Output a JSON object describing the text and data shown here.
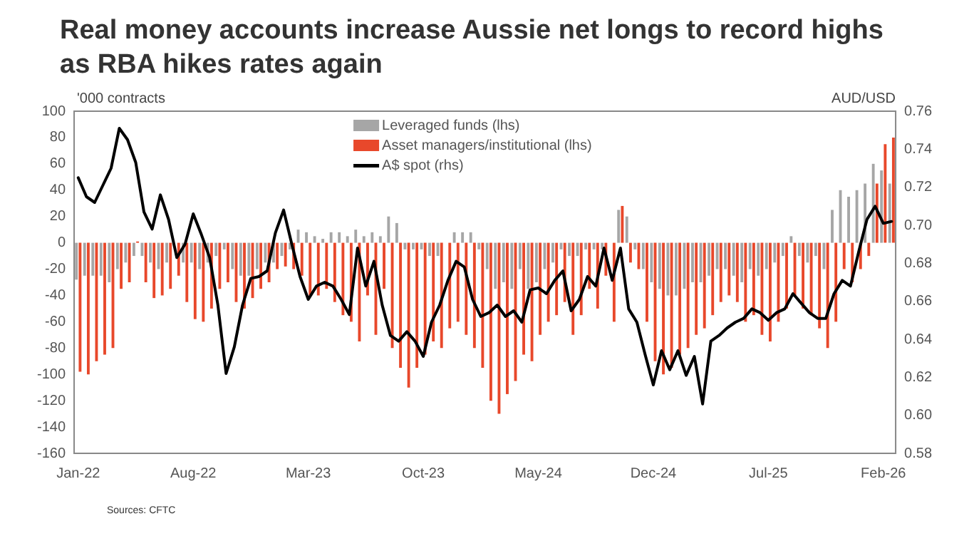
{
  "chart_data": {
    "type": "bar",
    "title": "Real money accounts increase Aussie net longs to record highs as RBA hikes rates again",
    "ylabel": "'000 contracts",
    "y2label": "AUD/USD",
    "annotations": [
      "Sources: CFTC"
    ],
    "categories": [
      "Jan-22",
      null,
      null,
      null,
      null,
      null,
      null,
      null,
      null,
      null,
      null,
      null,
      null,
      null,
      "Aug-22",
      null,
      null,
      null,
      null,
      null,
      null,
      null,
      null,
      null,
      null,
      null,
      null,
      null,
      "Mar-23",
      null,
      null,
      null,
      null,
      null,
      null,
      null,
      null,
      null,
      null,
      null,
      null,
      null,
      "Oct-23",
      null,
      null,
      null,
      null,
      null,
      null,
      null,
      null,
      null,
      null,
      null,
      null,
      null,
      "May-24",
      null,
      null,
      null,
      null,
      null,
      null,
      null,
      null,
      null,
      null,
      null,
      null,
      null,
      "Dec-24",
      null,
      null,
      null,
      null,
      null,
      null,
      null,
      null,
      null,
      null,
      null,
      null,
      null,
      "Jul-25",
      null,
      null,
      null,
      null,
      null,
      null,
      null,
      null,
      null,
      null,
      null,
      null,
      null,
      "Feb-26",
      null
    ],
    "series": [
      {
        "name": "Leveraged funds (lhs)",
        "color": "#a6a6a6",
        "values": [
          -28,
          -25,
          -25,
          -25,
          -30,
          -20,
          -15,
          -10,
          -10,
          -15,
          -20,
          -15,
          null,
          -15,
          -15,
          -20,
          -15,
          -10,
          -5,
          -20,
          -25,
          -25,
          -20,
          -15,
          -15,
          -10,
          -5,
          10,
          8,
          5,
          3,
          8,
          8,
          5,
          10,
          5,
          8,
          5,
          20,
          15,
          -5,
          -5,
          -5,
          -10,
          -10,
          0,
          8,
          8,
          8,
          -5,
          -20,
          -35,
          -30,
          -35,
          -20,
          -35,
          -30,
          -20,
          -15,
          -5,
          -10,
          -10,
          -5,
          -5,
          -5,
          0,
          25,
          20,
          -5,
          -20,
          -30,
          -35,
          -40,
          -40,
          -35,
          -30,
          -30,
          -25,
          -20,
          -20,
          -25,
          -30,
          -20,
          -25,
          -20,
          -15,
          -10,
          5,
          -10,
          -15,
          -10,
          -20,
          25,
          40,
          35,
          40,
          45,
          60,
          55,
          45
        ]
      },
      {
        "name": "Asset managers/institutional (lhs)",
        "color": "#e8482b",
        "values": [
          -98,
          -100,
          -90,
          -85,
          -80,
          -35,
          -30,
          1,
          -30,
          -42,
          -40,
          -35,
          -25,
          -45,
          -58,
          -60,
          -50,
          -35,
          -30,
          -45,
          -50,
          -42,
          -35,
          -30,
          -20,
          -18,
          -20,
          -25,
          -40,
          -40,
          -35,
          -45,
          -55,
          -60,
          -75,
          -40,
          -70,
          -35,
          -80,
          -95,
          -110,
          -95,
          -85,
          -75,
          -80,
          -65,
          -60,
          -70,
          -80,
          -95,
          -120,
          -130,
          -115,
          -105,
          -85,
          -90,
          -70,
          -60,
          -55,
          -45,
          -70,
          -55,
          -35,
          -50,
          -25,
          -60,
          28,
          -15,
          -20,
          -60,
          -90,
          -100,
          -95,
          -85,
          -80,
          -70,
          -65,
          -55,
          -45,
          -40,
          -45,
          -60,
          -55,
          -70,
          -75,
          -60,
          -50,
          -40,
          -50,
          -55,
          -65,
          -80,
          -60,
          -20,
          -30,
          -20,
          -10,
          45,
          75,
          80
        ]
      },
      {
        "name": "A$ spot (rhs)",
        "type": "line",
        "axis": "y2",
        "color": "#000000",
        "values": [
          0.725,
          0.715,
          0.712,
          0.721,
          0.73,
          0.751,
          0.745,
          0.733,
          0.707,
          0.698,
          0.716,
          0.703,
          0.683,
          0.69,
          0.706,
          0.695,
          0.683,
          0.658,
          0.622,
          0.636,
          0.658,
          0.672,
          0.673,
          0.676,
          0.696,
          0.708,
          0.69,
          0.673,
          0.661,
          0.668,
          0.67,
          0.668,
          0.661,
          0.653,
          0.688,
          0.668,
          0.681,
          0.658,
          0.642,
          0.639,
          0.644,
          0.639,
          0.631,
          0.649,
          0.658,
          0.671,
          0.681,
          0.678,
          0.661,
          0.652,
          0.654,
          0.658,
          0.652,
          0.655,
          0.649,
          0.666,
          0.667,
          0.664,
          0.671,
          0.676,
          0.655,
          0.661,
          0.673,
          0.668,
          0.688,
          0.671,
          0.688,
          0.656,
          0.649,
          0.632,
          0.616,
          0.634,
          0.624,
          0.634,
          0.621,
          0.631,
          0.606,
          0.639,
          0.642,
          0.646,
          0.649,
          0.651,
          0.656,
          0.654,
          0.65,
          0.654,
          0.656,
          0.664,
          0.659,
          0.654,
          0.651,
          0.651,
          0.664,
          0.671,
          0.668,
          0.686,
          0.703,
          0.71,
          0.701,
          0.702
        ]
      }
    ],
    "ylim": [
      -160,
      100
    ],
    "yticks": [
      -160,
      -140,
      -120,
      -100,
      -80,
      -60,
      -40,
      -20,
      0,
      20,
      40,
      60,
      80,
      100
    ],
    "y2lim": [
      0.58,
      0.76
    ],
    "y2ticks": [
      {
        "value": 0.58,
        "label": "0.58"
      },
      {
        "value": 0.6,
        "label": "0.60"
      },
      {
        "value": 0.62,
        "label": "0.62"
      },
      {
        "value": 0.64,
        "label": "0.64"
      },
      {
        "value": 0.66,
        "label": "0.66"
      },
      {
        "value": 0.68,
        "label": "0.68"
      },
      {
        "value": 0.7,
        "label": "0.70"
      },
      {
        "value": 0.72,
        "label": "0.72"
      },
      {
        "value": 0.74,
        "label": "0.74"
      },
      {
        "value": 0.76,
        "label": "0.76"
      }
    ],
    "legend": "top",
    "grid": false,
    "marker": "none",
    "line_style": "solid"
  }
}
